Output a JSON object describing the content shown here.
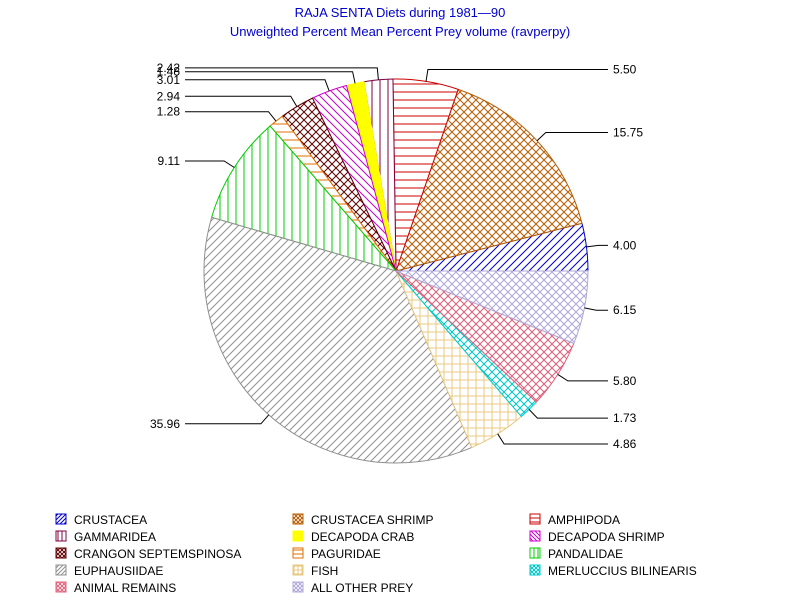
{
  "chart_data": {
    "type": "pie",
    "title": "RAJA SENTA Diets during 1981—90",
    "subtitle": "Unweighted Percent Mean Percent Prey  volume (ravperpy)",
    "legend_position": "bottom",
    "slices": [
      {
        "name": "CRUSTACEA",
        "value": 4.0,
        "label": "4.00",
        "color": "#0000cc",
        "pattern": "diag-up"
      },
      {
        "name": "CRUSTACEA SHRIMP",
        "value": 15.75,
        "label": "15.75",
        "color": "#b85c00",
        "pattern": "crosshatch"
      },
      {
        "name": "AMPHIPODA",
        "value": 5.5,
        "label": "5.50",
        "color": "#cc0000",
        "pattern": "horizontal"
      },
      {
        "name": "GAMMARIDEA",
        "value": 2.42,
        "label": "2.42",
        "color": "#800040",
        "pattern": "vertical"
      },
      {
        "name": "DECAPODA CRAB",
        "value": 1.48,
        "label": "1.48",
        "color": "#ffff00",
        "pattern": "solid"
      },
      {
        "name": "DECAPODA SHRIMP",
        "value": 3.01,
        "label": "3.01",
        "color": "#cc00cc",
        "pattern": "diag-down"
      },
      {
        "name": "CRANGON SEPTEMSPINOSA",
        "value": 2.94,
        "label": "2.94",
        "color": "#600000",
        "pattern": "crosshatch"
      },
      {
        "name": "PAGURIDAE",
        "value": 1.28,
        "label": "1.28",
        "color": "#e07000",
        "pattern": "horizontal"
      },
      {
        "name": "PANDALIDAE",
        "value": 9.11,
        "label": "9.11",
        "color": "#00cc00",
        "pattern": "vertical"
      },
      {
        "name": "EUPHAUSIIDAE",
        "value": 35.96,
        "label": "35.96",
        "color": "#909090",
        "pattern": "diag-up"
      },
      {
        "name": "FISH",
        "value": 4.86,
        "label": "4.86",
        "color": "#e8c880",
        "pattern": "grid"
      },
      {
        "name": "MERLUCCIUS BILINEARIS",
        "value": 1.73,
        "label": "1.73",
        "color": "#00c8c8",
        "pattern": "crosshatch"
      },
      {
        "name": "ANIMAL REMAINS",
        "value": 5.8,
        "label": "5.80",
        "color": "#e0607a",
        "pattern": "crosshatch"
      },
      {
        "name": "ALL OTHER PREY",
        "value": 6.15,
        "label": "6.15",
        "color": "#b0a8d8",
        "pattern": "crosshatch"
      }
    ]
  }
}
